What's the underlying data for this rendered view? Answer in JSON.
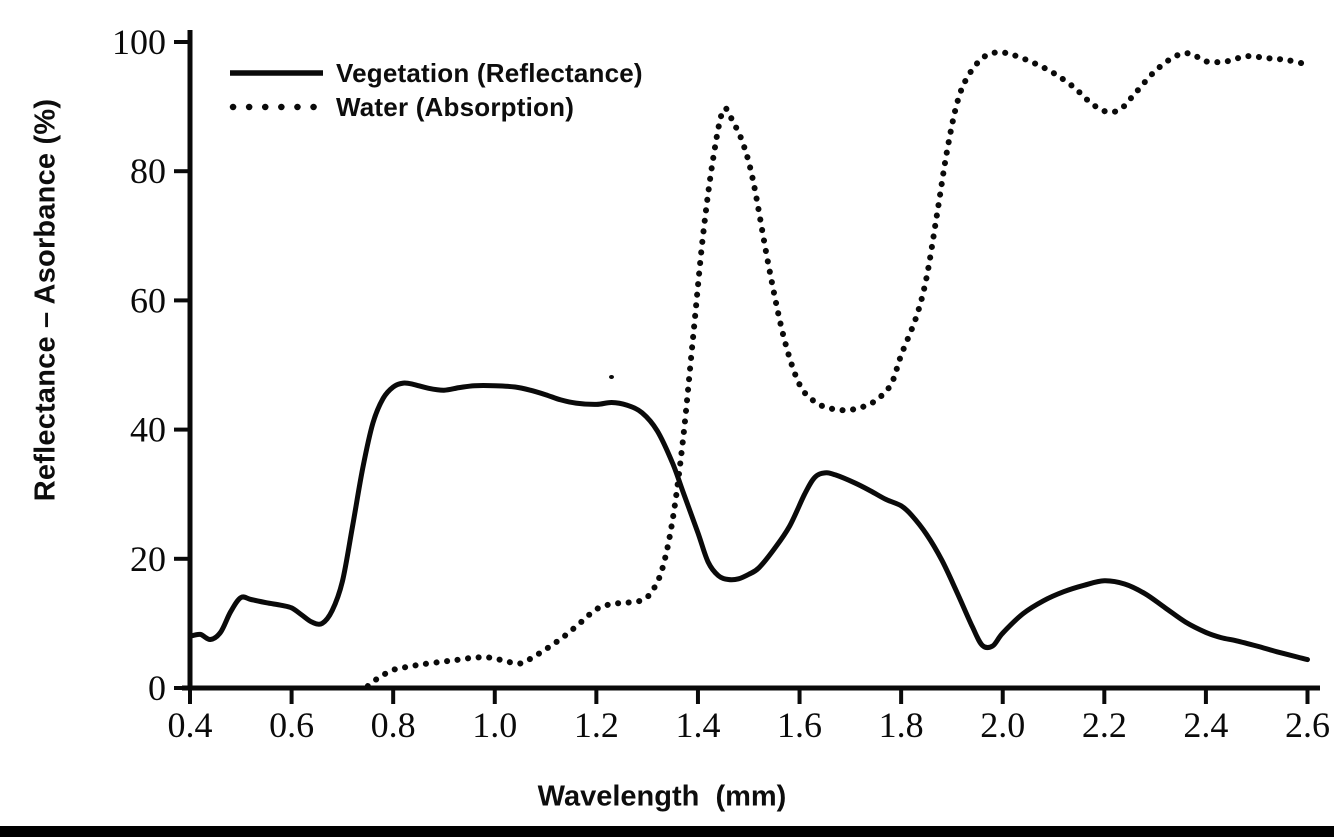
{
  "figure": {
    "y_axis_title": "Reflectance – Asorbance (%)",
    "x_axis_title": "Wavelength  (mm)",
    "background_color": "#ffffff",
    "line_color": "#0a0a0a",
    "bottom_bar_color": "#000000",
    "legend": [
      {
        "label": "Vegetation (Reflectance)",
        "style": "solid"
      },
      {
        "label": "Water (Absorption)",
        "style": "dotted"
      }
    ]
  },
  "chart_data": {
    "type": "line",
    "title": "",
    "xlabel": "Wavelength (mm)",
    "ylabel": "Reflectance – Asorbance (%)",
    "xlim": [
      0.4,
      2.6
    ],
    "ylim": [
      0,
      100
    ],
    "x_ticks": [
      "0.4",
      "0.6",
      "0.8",
      "1.0",
      "1.2",
      "1.4",
      "1.6",
      "1.8",
      "2.0",
      "2.2",
      "2.4",
      "2.6"
    ],
    "y_ticks": [
      "0",
      "20",
      "40",
      "60",
      "80",
      "100"
    ],
    "grid": false,
    "legend_position": "top-left-inside",
    "series": [
      {
        "name": "Vegetation (Reflectance)",
        "line_style": "solid",
        "color": "#0a0a0a",
        "points": [
          [
            0.4,
            8.0
          ],
          [
            0.42,
            8.3
          ],
          [
            0.44,
            7.5
          ],
          [
            0.46,
            8.6
          ],
          [
            0.48,
            11.8
          ],
          [
            0.5,
            14.0
          ],
          [
            0.52,
            13.7
          ],
          [
            0.55,
            13.2
          ],
          [
            0.58,
            12.8
          ],
          [
            0.6,
            12.4
          ],
          [
            0.62,
            11.3
          ],
          [
            0.64,
            10.2
          ],
          [
            0.66,
            10.0
          ],
          [
            0.68,
            12.0
          ],
          [
            0.7,
            16.5
          ],
          [
            0.72,
            25.0
          ],
          [
            0.74,
            34.0
          ],
          [
            0.76,
            41.0
          ],
          [
            0.78,
            44.8
          ],
          [
            0.8,
            46.6
          ],
          [
            0.82,
            47.2
          ],
          [
            0.84,
            47.0
          ],
          [
            0.87,
            46.4
          ],
          [
            0.9,
            46.1
          ],
          [
            0.93,
            46.5
          ],
          [
            0.96,
            46.8
          ],
          [
            1.0,
            46.8
          ],
          [
            1.04,
            46.6
          ],
          [
            1.07,
            46.1
          ],
          [
            1.1,
            45.4
          ],
          [
            1.13,
            44.6
          ],
          [
            1.16,
            44.1
          ],
          [
            1.2,
            43.9
          ],
          [
            1.23,
            44.2
          ],
          [
            1.26,
            43.8
          ],
          [
            1.29,
            42.6
          ],
          [
            1.32,
            39.8
          ],
          [
            1.35,
            34.8
          ],
          [
            1.37,
            30.5
          ],
          [
            1.4,
            24.0
          ],
          [
            1.42,
            19.5
          ],
          [
            1.44,
            17.4
          ],
          [
            1.46,
            16.8
          ],
          [
            1.48,
            16.9
          ],
          [
            1.5,
            17.6
          ],
          [
            1.52,
            18.6
          ],
          [
            1.55,
            21.5
          ],
          [
            1.58,
            25.0
          ],
          [
            1.61,
            30.0
          ],
          [
            1.63,
            32.6
          ],
          [
            1.65,
            33.3
          ],
          [
            1.67,
            33.0
          ],
          [
            1.71,
            31.7
          ],
          [
            1.74,
            30.5
          ],
          [
            1.77,
            29.2
          ],
          [
            1.8,
            28.2
          ],
          [
            1.82,
            26.8
          ],
          [
            1.85,
            23.8
          ],
          [
            1.88,
            19.8
          ],
          [
            1.91,
            14.8
          ],
          [
            1.94,
            9.5
          ],
          [
            1.96,
            6.6
          ],
          [
            1.98,
            6.5
          ],
          [
            2.0,
            8.5
          ],
          [
            2.04,
            11.5
          ],
          [
            2.08,
            13.5
          ],
          [
            2.12,
            14.9
          ],
          [
            2.16,
            15.9
          ],
          [
            2.2,
            16.6
          ],
          [
            2.24,
            16.1
          ],
          [
            2.28,
            14.6
          ],
          [
            2.32,
            12.4
          ],
          [
            2.36,
            10.2
          ],
          [
            2.4,
            8.6
          ],
          [
            2.43,
            7.8
          ],
          [
            2.46,
            7.3
          ],
          [
            2.5,
            6.5
          ],
          [
            2.54,
            5.6
          ],
          [
            2.58,
            4.8
          ],
          [
            2.6,
            4.4
          ]
        ]
      },
      {
        "name": "Water (Absorption)",
        "line_style": "dotted",
        "color": "#0a0a0a",
        "points": [
          [
            0.75,
            0.3
          ],
          [
            0.77,
            1.5
          ],
          [
            0.8,
            2.8
          ],
          [
            0.83,
            3.3
          ],
          [
            0.86,
            3.7
          ],
          [
            0.9,
            4.1
          ],
          [
            0.93,
            4.4
          ],
          [
            0.96,
            4.7
          ],
          [
            0.99,
            4.7
          ],
          [
            1.02,
            4.2
          ],
          [
            1.05,
            3.8
          ],
          [
            1.08,
            5.0
          ],
          [
            1.11,
            6.5
          ],
          [
            1.14,
            8.2
          ],
          [
            1.17,
            10.2
          ],
          [
            1.2,
            12.2
          ],
          [
            1.23,
            13.0
          ],
          [
            1.26,
            13.2
          ],
          [
            1.29,
            13.6
          ],
          [
            1.31,
            15.0
          ],
          [
            1.33,
            18.5
          ],
          [
            1.35,
            26.0
          ],
          [
            1.37,
            38.0
          ],
          [
            1.39,
            54.0
          ],
          [
            1.41,
            70.0
          ],
          [
            1.43,
            82.0
          ],
          [
            1.45,
            89.5
          ],
          [
            1.47,
            87.5
          ],
          [
            1.49,
            84.0
          ],
          [
            1.51,
            78.0
          ],
          [
            1.54,
            65.0
          ],
          [
            1.57,
            54.0
          ],
          [
            1.6,
            47.0
          ],
          [
            1.63,
            44.3
          ],
          [
            1.66,
            43.3
          ],
          [
            1.69,
            43.0
          ],
          [
            1.72,
            43.4
          ],
          [
            1.75,
            44.5
          ],
          [
            1.78,
            47.0
          ],
          [
            1.8,
            51.5
          ],
          [
            1.83,
            57.5
          ],
          [
            1.85,
            63.5
          ],
          [
            1.87,
            73.0
          ],
          [
            1.89,
            83.0
          ],
          [
            1.91,
            90.5
          ],
          [
            1.93,
            94.5
          ],
          [
            1.96,
            97.5
          ],
          [
            1.99,
            98.4
          ],
          [
            2.02,
            98.0
          ],
          [
            2.06,
            96.8
          ],
          [
            2.1,
            95.2
          ],
          [
            2.14,
            93.0
          ],
          [
            2.17,
            90.8
          ],
          [
            2.2,
            89.3
          ],
          [
            2.23,
            89.5
          ],
          [
            2.26,
            92.0
          ],
          [
            2.3,
            95.5
          ],
          [
            2.34,
            97.8
          ],
          [
            2.37,
            98.2
          ],
          [
            2.4,
            97.0
          ],
          [
            2.44,
            97.0
          ],
          [
            2.48,
            97.8
          ],
          [
            2.52,
            97.5
          ],
          [
            2.56,
            97.2
          ],
          [
            2.6,
            96.5
          ]
        ]
      }
    ]
  }
}
